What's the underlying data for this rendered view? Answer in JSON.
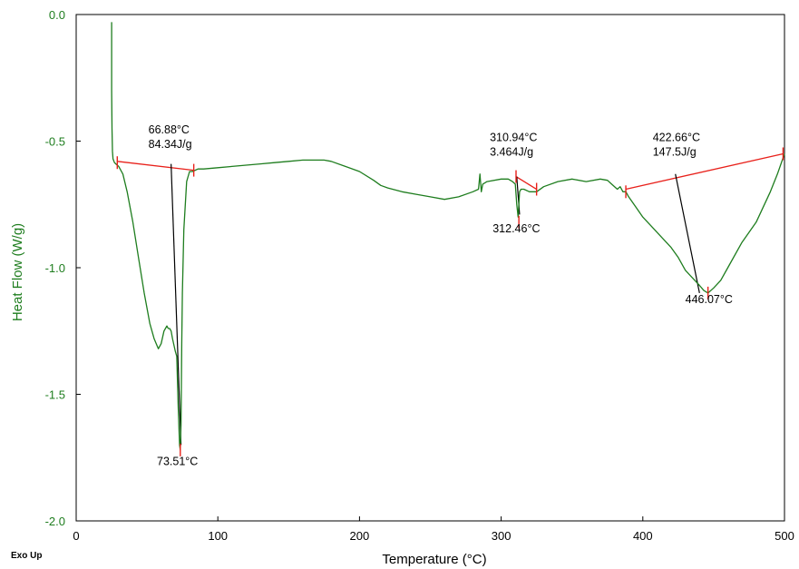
{
  "chart_data": {
    "type": "line",
    "title": "",
    "xlabel": "Temperature (°C)",
    "ylabel": "Heat Flow (W/g)",
    "corner_label": "Exo Up",
    "xlim": [
      0,
      500
    ],
    "ylim": [
      -2.0,
      0.0
    ],
    "x_ticks": [
      0,
      100,
      200,
      300,
      400,
      500
    ],
    "x_tick_labels": [
      "0",
      "100",
      "200",
      "300",
      "400",
      "500"
    ],
    "y_ticks": [
      0.0,
      -0.5,
      -1.0,
      -1.5,
      -2.0
    ],
    "y_tick_labels": [
      "0.0",
      "-0.5",
      "-1.0",
      "-1.5",
      "-2.0"
    ],
    "grid": false,
    "colors": {
      "curve": "#1e7d1e",
      "baseline": "#e8201a",
      "tangent": "#000000",
      "ytext": "#1e7d1e"
    },
    "series": [
      {
        "x": [
          25,
          25,
          25.3,
          25.6,
          26,
          27,
          28,
          30,
          33,
          36,
          40,
          44,
          48,
          52,
          55,
          58,
          60,
          62,
          63,
          64,
          65,
          66,
          67,
          68,
          70,
          71,
          72,
          73,
          73.5,
          74,
          74.5,
          75,
          76,
          78,
          80,
          82,
          84,
          86,
          90,
          100,
          110,
          120,
          130,
          140,
          150,
          160,
          170,
          175,
          180,
          190,
          200,
          210,
          215,
          220,
          230,
          240,
          250,
          260,
          270,
          280,
          284,
          285,
          286,
          287,
          290,
          300,
          305,
          308,
          310,
          311,
          312,
          312.5,
          313,
          314,
          316,
          320,
          325,
          330,
          340,
          350,
          360,
          370,
          375,
          378,
          380,
          382,
          384,
          386,
          388,
          390,
          395,
          400,
          410,
          420,
          425,
          430,
          435,
          440,
          443,
          446,
          450,
          455,
          460,
          470,
          480,
          490,
          495,
          500
        ],
        "y": [
          -0.03,
          -0.3,
          -0.45,
          -0.54,
          -0.57,
          -0.585,
          -0.59,
          -0.6,
          -0.63,
          -0.7,
          -0.82,
          -0.96,
          -1.1,
          -1.22,
          -1.28,
          -1.32,
          -1.3,
          -1.25,
          -1.24,
          -1.23,
          -1.24,
          -1.24,
          -1.25,
          -1.28,
          -1.33,
          -1.35,
          -1.55,
          -1.7,
          -1.72,
          -1.62,
          -1.3,
          -1.1,
          -0.85,
          -0.66,
          -0.62,
          -0.62,
          -0.615,
          -0.61,
          -0.61,
          -0.605,
          -0.6,
          -0.595,
          -0.59,
          -0.585,
          -0.58,
          -0.575,
          -0.575,
          -0.575,
          -0.58,
          -0.6,
          -0.62,
          -0.655,
          -0.675,
          -0.685,
          -0.7,
          -0.71,
          -0.72,
          -0.73,
          -0.72,
          -0.7,
          -0.69,
          -0.63,
          -0.7,
          -0.67,
          -0.66,
          -0.65,
          -0.65,
          -0.66,
          -0.67,
          -0.75,
          -0.8,
          -0.75,
          -0.7,
          -0.69,
          -0.69,
          -0.7,
          -0.7,
          -0.68,
          -0.66,
          -0.65,
          -0.66,
          -0.65,
          -0.655,
          -0.67,
          -0.68,
          -0.69,
          -0.68,
          -0.7,
          -0.7,
          -0.72,
          -0.76,
          -0.8,
          -0.86,
          -0.92,
          -0.96,
          -1.01,
          -1.04,
          -1.07,
          -1.09,
          -1.1,
          -1.08,
          -1.05,
          -1.0,
          -0.9,
          -0.82,
          -0.7,
          -0.63,
          -0.55
        ]
      }
    ],
    "baselines": [
      {
        "x1": 29,
        "y1": -0.58,
        "x2": 83,
        "y2": -0.615
      },
      {
        "x1": 310.5,
        "y1": -0.64,
        "x2": 325,
        "y2": -0.69
      },
      {
        "x1": 388,
        "y1": -0.69,
        "x2": 499,
        "y2": -0.55
      }
    ],
    "tangents": [
      {
        "x1": 67,
        "y1": -0.59,
        "x2": 74,
        "y2": -1.7
      },
      {
        "x1": 311,
        "y1": -0.64,
        "x2": 313,
        "y2": -0.79
      },
      {
        "x1": 423,
        "y1": -0.63,
        "x2": 440,
        "y2": -1.1
      }
    ],
    "markers": [
      {
        "x": 29,
        "y": -0.585
      },
      {
        "x": 83,
        "y": -0.615
      },
      {
        "x": 73.5,
        "y": -1.72
      },
      {
        "x": 310.5,
        "y": -0.64
      },
      {
        "x": 325,
        "y": -0.69
      },
      {
        "x": 312.5,
        "y": -0.82
      },
      {
        "x": 388,
        "y": -0.7
      },
      {
        "x": 446,
        "y": -1.1
      },
      {
        "x": 499,
        "y": -0.55
      }
    ],
    "annotations": [
      {
        "id": "onset1",
        "lines": [
          "66.88°C",
          "84.34J/g"
        ],
        "x": 51,
        "y": -0.47
      },
      {
        "id": "peak1",
        "lines": [
          "73.51°C"
        ],
        "x": 57,
        "y": -1.78
      },
      {
        "id": "onset2",
        "lines": [
          "310.94°C",
          "3.464J/g"
        ],
        "x": 292,
        "y": -0.5
      },
      {
        "id": "peak2",
        "lines": [
          "312.46°C"
        ],
        "x": 294,
        "y": -0.86
      },
      {
        "id": "onset3",
        "lines": [
          "422.66°C",
          "147.5J/g"
        ],
        "x": 407,
        "y": -0.5
      },
      {
        "id": "peak3",
        "lines": [
          "446.07°C"
        ],
        "x": 430,
        "y": -1.14
      }
    ]
  }
}
